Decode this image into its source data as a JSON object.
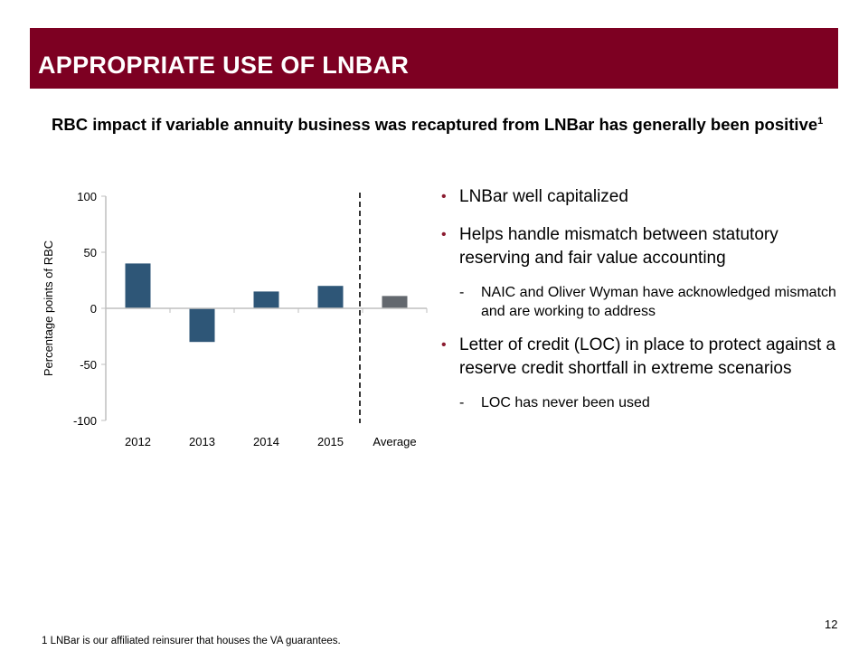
{
  "slide": {
    "title": "APPROPRIATE USE OF LNBAR",
    "subtitle": "RBC impact if variable annuity business was recaptured from LNBar has generally been positive",
    "subtitle_superscript": "1",
    "page_number": "12",
    "footnote": "1  LNBar is our affiliated reinsurer that houses the VA guarantees.",
    "colors": {
      "banner": "#7d0022",
      "bullet": "#8b1a2f",
      "bar": "#2e5677",
      "average_bar": "#63686e"
    }
  },
  "bullets": [
    {
      "level": 1,
      "marker": "•",
      "text": "LNBar well capitalized"
    },
    {
      "level": 1,
      "marker": "•",
      "text": "Helps handle mismatch between statutory reserving and fair value accounting"
    },
    {
      "level": 2,
      "marker": "-",
      "text": "NAIC and Oliver Wyman have acknowledged mismatch and are working to address"
    },
    {
      "level": 1,
      "marker": "•",
      "text": "Letter of credit (LOC) in place to protect against a reserve credit shortfall in extreme scenarios"
    },
    {
      "level": 2,
      "marker": "-",
      "text": "LOC has never been used"
    }
  ],
  "chart_data": {
    "type": "bar",
    "title": "",
    "xlabel": "",
    "ylabel": "Percentage points of RBC",
    "categories": [
      "2012",
      "2013",
      "2014",
      "2015",
      "Average"
    ],
    "values": [
      40,
      -30,
      15,
      20,
      11
    ],
    "ylim": [
      -100,
      100
    ],
    "yticks": [
      100,
      50,
      0,
      -50,
      -100
    ],
    "ytick_labels": [
      "100",
      "50",
      "0",
      "-50",
      "-100"
    ],
    "grid": false,
    "legend": "none",
    "annotations": [
      "dashed vertical separator between 2015 and Average"
    ]
  }
}
